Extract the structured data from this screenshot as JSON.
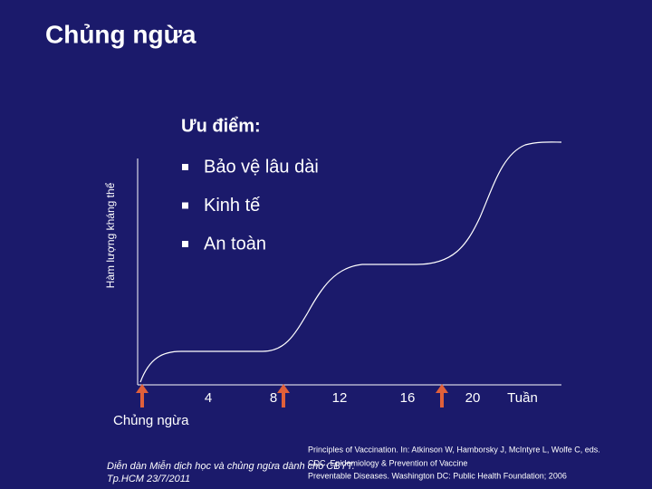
{
  "header": {
    "title": "Chủng ngừa"
  },
  "content": {
    "heading": "Ưu điểm:",
    "bullets": [
      "Bảo vệ lâu dài",
      "Kinh tế",
      "An toàn"
    ]
  },
  "y_axis_label": "Hàm lượng kháng thể",
  "x_axis": {
    "ticks": [
      "4",
      "8",
      "12",
      "16",
      "20",
      "Tuần"
    ],
    "label": "Chủng ngừa"
  },
  "footer": {
    "left": [
      "Diễn dàn Miễn dịch học và chủng ngừa dành cho CBYT.",
      "Tp.HCM 23/7/2011"
    ],
    "right": [
      "Principles of Vaccination. In: Atkinson W, Hamborsky J, McIntyre L, Wolfe C, eds.",
      "CDC. Epidemiology & Prevention of Vaccine",
      "Preventable Diseases. Washington DC: Public Health Foundation; 2006"
    ]
  }
}
